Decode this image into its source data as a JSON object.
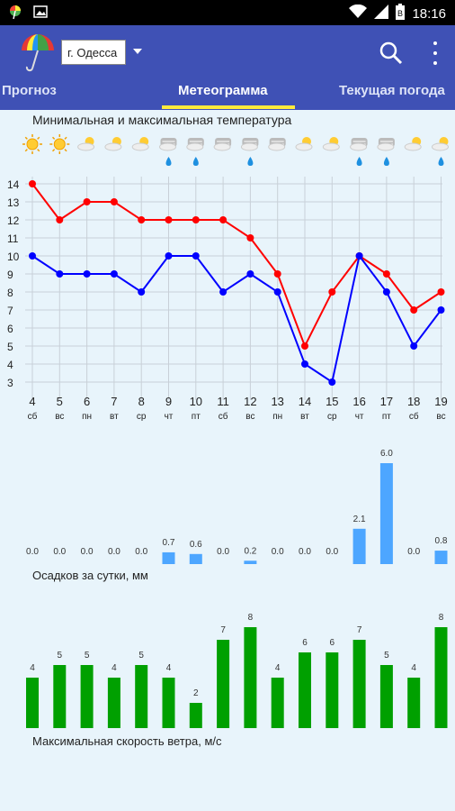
{
  "status": {
    "time": "18:16",
    "icons": [
      "app-notification-icon",
      "image-notification-icon",
      "wifi-icon",
      "signal-icon",
      "battery-icon"
    ]
  },
  "app": {
    "city": "г. Одесса",
    "colors": {
      "toolbar": "#3f51b5",
      "tab_indicator": "#ffeb3b",
      "max_temp": "#ff0000",
      "min_temp": "#0000ff",
      "precip": "#4da6ff",
      "wind": "#00a000"
    }
  },
  "tabs": [
    {
      "label": "Прогноз",
      "active": false
    },
    {
      "label": "Метеограмма",
      "active": true
    },
    {
      "label": "Текущая погода",
      "active": false
    }
  ],
  "chart_data": [
    {
      "type": "line",
      "title": "Минимальная и максимальная температура",
      "ylim": [
        3,
        14
      ],
      "yticks": [
        3,
        4,
        5,
        6,
        7,
        8,
        9,
        10,
        11,
        12,
        13,
        14
      ],
      "x": [
        "4",
        "5",
        "6",
        "7",
        "8",
        "9",
        "10",
        "11",
        "12",
        "13",
        "14",
        "15",
        "16",
        "17",
        "18",
        "19"
      ],
      "weekdays": [
        "сб",
        "вс",
        "пн",
        "вт",
        "ср",
        "чт",
        "пт",
        "сб",
        "вс",
        "пн",
        "вт",
        "ср",
        "чт",
        "пт",
        "сб",
        "вс"
      ],
      "weather_icons": [
        "sun-icon",
        "sun-icon",
        "partly-cloudy-icon",
        "partly-cloudy-icon",
        "partly-cloudy-icon",
        "cloudy-rain-icon",
        "cloudy-rain-icon",
        "cloudy-icon",
        "cloudy-rain-icon",
        "cloudy-icon",
        "partly-sunny-icon",
        "partly-sunny-icon",
        "cloudy-rain-icon",
        "cloudy-rain-icon",
        "partly-cloudy-icon",
        "partly-cloudy-rain-icon"
      ],
      "series": [
        {
          "values": [
            14,
            12,
            13,
            13,
            12,
            12,
            12,
            12,
            11,
            9,
            5,
            8,
            10,
            9,
            7,
            8
          ]
        },
        {
          "values": [
            10,
            9,
            9,
            9,
            8,
            10,
            10,
            8,
            9,
            8,
            4,
            3,
            10,
            8,
            5,
            7
          ]
        }
      ],
      "grid": true
    },
    {
      "type": "bar",
      "title": "Осадков за сутки, мм",
      "values": [
        0.0,
        0.0,
        0.0,
        0.0,
        0.0,
        0.7,
        0.6,
        0.0,
        0.2,
        0.0,
        0.0,
        0.0,
        2.1,
        6.0,
        0.0,
        0.8
      ],
      "labels": [
        "0.0",
        "0.0",
        "0.0",
        "0.0",
        "0.0",
        "0.7",
        "0.6",
        "0.0",
        "0.2",
        "0.0",
        "0.0",
        "0.0",
        "2.1",
        "6.0",
        "0.0",
        "0.8"
      ],
      "ylim": [
        0,
        6.0
      ]
    },
    {
      "type": "bar",
      "title": "Максимальная скорость ветра, м/с",
      "values": [
        4,
        5,
        5,
        4,
        5,
        4,
        2,
        7,
        8,
        4,
        6,
        6,
        7,
        5,
        4,
        8
      ],
      "labels": [
        "4",
        "5",
        "5",
        "4",
        "5",
        "4",
        "2",
        "7",
        "8",
        "4",
        "6",
        "6",
        "7",
        "5",
        "4",
        "8"
      ],
      "ylim": [
        0,
        8
      ]
    }
  ]
}
